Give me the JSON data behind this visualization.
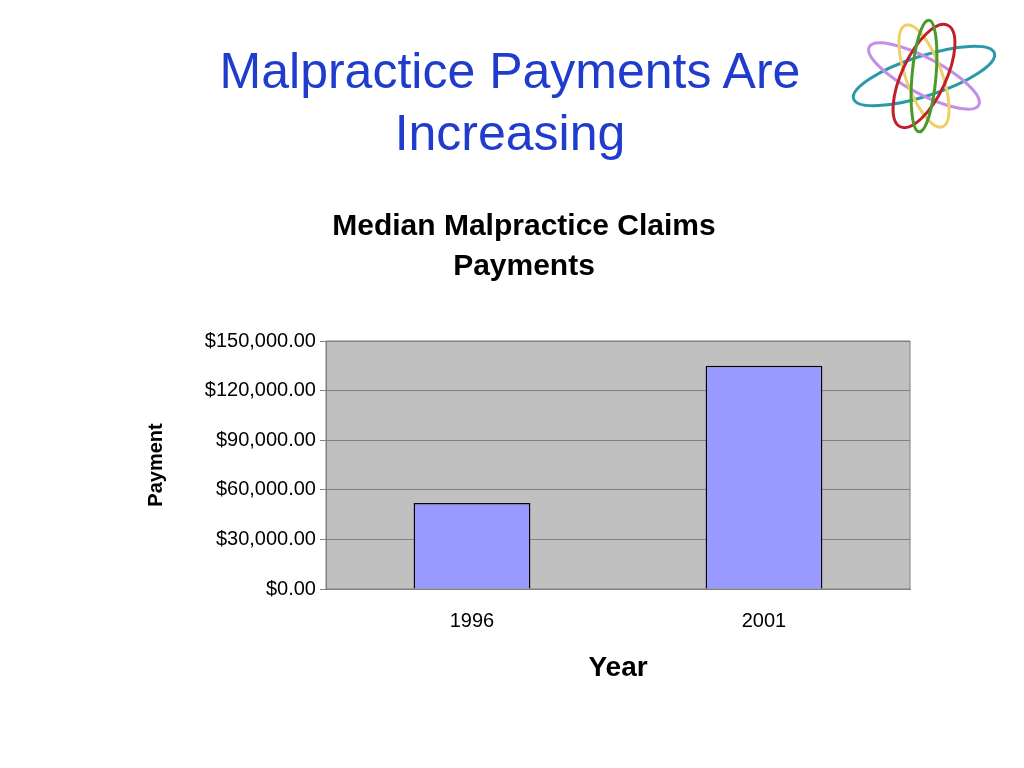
{
  "chart_data": {
    "type": "bar",
    "title": "Malpractice Payments Are Increasing",
    "subtitle": "Median Malpractice Claims Payments",
    "xlabel": "Year",
    "ylabel": "Payment",
    "categories": [
      "1996",
      "2001"
    ],
    "values": [
      52000,
      135000
    ],
    "color": "#9999ff",
    "ylim": [
      0,
      150000
    ],
    "yticks": [
      {
        "value": 0,
        "label": "$0.00"
      },
      {
        "value": 30000,
        "label": "$30,000.00"
      },
      {
        "value": 60000,
        "label": "$60,000.00"
      },
      {
        "value": 90000,
        "label": "$90,000.00"
      },
      {
        "value": 120000,
        "label": "$120,000.00"
      },
      {
        "value": 150000,
        "label": "$150,000.00"
      }
    ],
    "grid": "y",
    "legend": false
  }
}
